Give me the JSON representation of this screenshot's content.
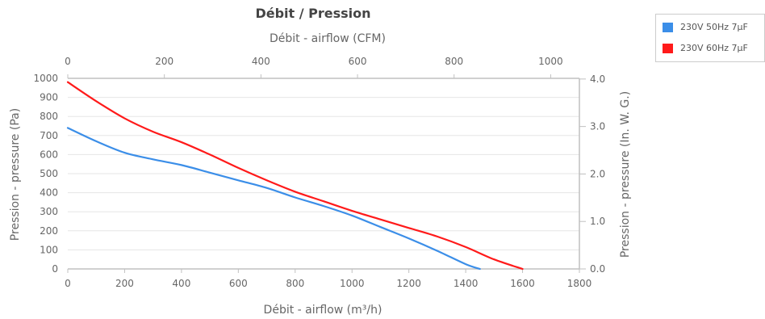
{
  "chart_data": {
    "type": "line",
    "title": "Débit / Pression",
    "xlabel": "Débit - airflow (m³/h)",
    "x2label": "Débit - airflow (CFM)",
    "ylabel": "Pression - pressure (Pa)",
    "y2label": "Pression - pressure (In. W. G.)",
    "xlim": [
      0,
      1800
    ],
    "ylim": [
      0,
      1000
    ],
    "x2lim": [
      0,
      1059.5
    ],
    "y2lim": [
      0,
      4.0145
    ],
    "x_ticks": [
      "0",
      "200",
      "400",
      "600",
      "800",
      "1000",
      "1200",
      "1400",
      "1600",
      "1800"
    ],
    "y_ticks": [
      "0",
      "100",
      "200",
      "300",
      "400",
      "500",
      "600",
      "700",
      "800",
      "900",
      "1000"
    ],
    "x2_ticks": [
      "0",
      "200",
      "400",
      "600",
      "800",
      "1000"
    ],
    "y2_ticks": [
      "0.0",
      "1.0",
      "2.0",
      "3.0",
      "4.0"
    ],
    "grid": true,
    "legend_position": "top-right",
    "series": [
      {
        "name": "230V 50Hz 7µF",
        "color": "#3b8ee8",
        "x": [
          0,
          100,
          200,
          300,
          400,
          500,
          600,
          700,
          800,
          900,
          1000,
          1100,
          1200,
          1300,
          1400,
          1450
        ],
        "y": [
          740,
          670,
          610,
          575,
          545,
          505,
          465,
          425,
          375,
          330,
          280,
          220,
          160,
          95,
          25,
          0
        ]
      },
      {
        "name": "230V 60Hz 7µF",
        "color": "#ff1a1a",
        "x": [
          0,
          100,
          200,
          300,
          400,
          500,
          600,
          700,
          800,
          900,
          1000,
          1100,
          1200,
          1300,
          1400,
          1500,
          1600
        ],
        "y": [
          980,
          880,
          790,
          720,
          665,
          600,
          530,
          465,
          405,
          355,
          305,
          260,
          215,
          170,
          115,
          50,
          0
        ]
      }
    ]
  }
}
